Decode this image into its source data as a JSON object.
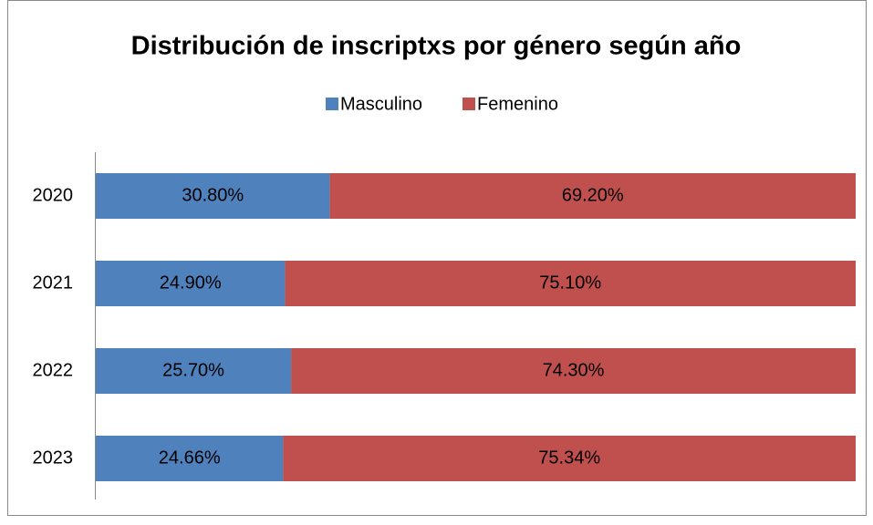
{
  "chart_data": {
    "type": "stacked-barh",
    "title": "Distribución de inscriptxs por género según año",
    "categories": [
      "2020",
      "2021",
      "2022",
      "2023"
    ],
    "series": [
      {
        "name": "Masculino",
        "color": "#4f81bd",
        "values": [
          30.8,
          24.9,
          25.7,
          24.66
        ],
        "value_labels": [
          "30.80%",
          "24.90%",
          "25.70%",
          "24.66%"
        ]
      },
      {
        "name": "Femenino",
        "color": "#c0504d",
        "values": [
          69.2,
          75.1,
          74.3,
          75.34
        ],
        "value_labels": [
          "69.20%",
          "75.10%",
          "74.30%",
          "75.34%"
        ]
      }
    ],
    "xlim": [
      0,
      100
    ],
    "legend": "top"
  }
}
